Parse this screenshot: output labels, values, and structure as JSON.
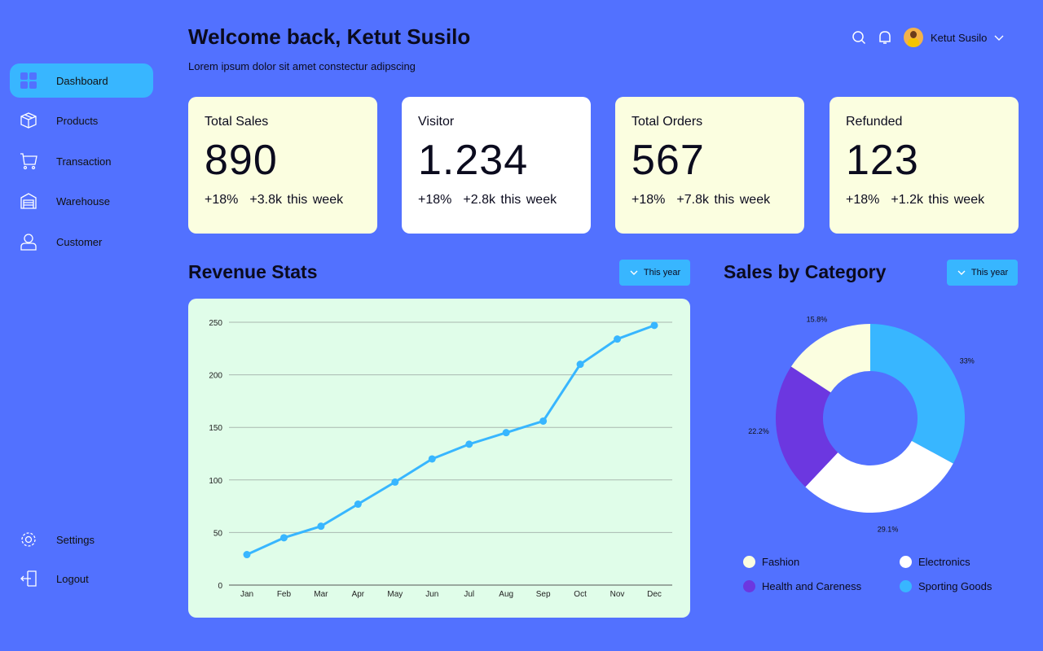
{
  "sidebar": {
    "items": [
      {
        "label": "Dashboard",
        "icon": "grid-icon",
        "active": true
      },
      {
        "label": "Products",
        "icon": "box-icon"
      },
      {
        "label": "Transaction",
        "icon": "cart-icon"
      },
      {
        "label": "Warehouse",
        "icon": "warehouse-icon"
      },
      {
        "label": "Customer",
        "icon": "user-icon"
      }
    ],
    "bottom": [
      {
        "label": "Settings",
        "icon": "gear-icon"
      },
      {
        "label": "Logout",
        "icon": "logout-icon"
      }
    ]
  },
  "header": {
    "title": "Welcome back, Ketut Susilo",
    "subtitle": "Lorem ipsum dolor sit amet constectur adipscing",
    "user_name": "Ketut Susilo"
  },
  "cards": [
    {
      "title": "Total Sales",
      "value": "890",
      "pct": "+18%",
      "week": "+3.8k this week"
    },
    {
      "title": "Visitor",
      "value": "1.234",
      "pct": "+18%",
      "week": "+2.8k this week"
    },
    {
      "title": "Total Orders",
      "value": "567",
      "pct": "+18%",
      "week": "+7.8k this week"
    },
    {
      "title": "Refunded",
      "value": "123",
      "pct": "+18%",
      "week": "+1.2k this week"
    }
  ],
  "revenue": {
    "title": "Revenue Stats",
    "filter": "This year"
  },
  "category": {
    "title": "Sales by Category",
    "filter": "This year"
  },
  "chart_data": [
    {
      "type": "line",
      "title": "Revenue Stats",
      "categories": [
        "Jan",
        "Feb",
        "Mar",
        "Apr",
        "May",
        "Jun",
        "Jul",
        "Aug",
        "Sep",
        "Oct",
        "Nov",
        "Dec"
      ],
      "values": [
        29,
        45,
        56,
        77,
        98,
        120,
        134,
        145,
        156,
        210,
        234,
        247
      ],
      "yticks": [
        0,
        50,
        100,
        150,
        200,
        250
      ],
      "ylim": [
        0,
        250
      ],
      "color": "#38b6ff",
      "grid": true
    },
    {
      "type": "pie",
      "title": "Sales by Category",
      "labels": [
        "Sporting Goods",
        "Electronics",
        "Health and Careness",
        "Fashion"
      ],
      "values": [
        33,
        29.1,
        22.2,
        15.8
      ],
      "value_labels": [
        "33%",
        "29.1%",
        "22.2%",
        "15.8%"
      ],
      "colors": [
        "#38b6ff",
        "#ffffff",
        "#6c37e0",
        "#fbfee0"
      ],
      "legend_order": [
        "Fashion",
        "Electronics",
        "Health and Careness",
        "Sporting Goods"
      ]
    }
  ]
}
